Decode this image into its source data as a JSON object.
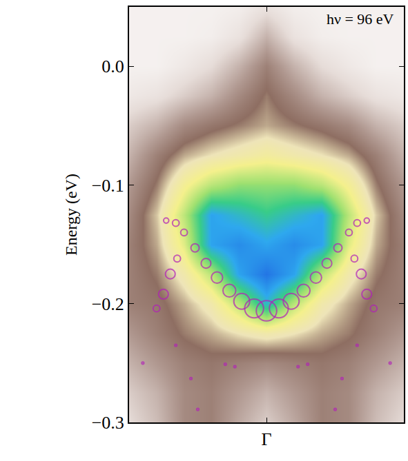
{
  "chart_data": {
    "type": "heatmap",
    "annotation": "hν = 96 eV",
    "y_label": "Energy (eV)",
    "xlim": [
      -1,
      1
    ],
    "xticks": [
      {
        "value": 0,
        "label": "Γ"
      }
    ],
    "ylim": [
      -0.3,
      0.05
    ],
    "yticks": [
      {
        "value": -0.3,
        "label": "−0.3"
      },
      {
        "value": -0.2,
        "label": "−0.2"
      },
      {
        "value": -0.1,
        "label": "−0.1"
      },
      {
        "value": 0,
        "label": "0.0"
      }
    ],
    "grid": false,
    "heatmap": {
      "x": [
        -1,
        -0.8,
        -0.6,
        -0.4,
        -0.2,
        0,
        0.2,
        0.4,
        0.6,
        0.8,
        1
      ],
      "y": [
        0.05,
        0.025,
        0,
        -0.025,
        -0.05,
        -0.075,
        -0.1,
        -0.125,
        -0.15,
        -0.175,
        -0.2,
        -0.225,
        -0.25,
        -0.275,
        -0.3
      ],
      "z": [
        [
          0.05,
          0.05,
          0.05,
          0.05,
          0.06,
          0.1,
          0.06,
          0.05,
          0.05,
          0.05,
          0.05
        ],
        [
          0.05,
          0.05,
          0.05,
          0.06,
          0.1,
          0.2,
          0.1,
          0.06,
          0.05,
          0.05,
          0.05
        ],
        [
          0.05,
          0.05,
          0.08,
          0.12,
          0.2,
          0.3,
          0.2,
          0.12,
          0.08,
          0.05,
          0.05
        ],
        [
          0.08,
          0.1,
          0.15,
          0.2,
          0.28,
          0.35,
          0.28,
          0.2,
          0.15,
          0.1,
          0.08
        ],
        [
          0.15,
          0.2,
          0.28,
          0.32,
          0.35,
          0.38,
          0.35,
          0.32,
          0.28,
          0.2,
          0.15
        ],
        [
          0.2,
          0.3,
          0.38,
          0.42,
          0.45,
          0.48,
          0.45,
          0.42,
          0.38,
          0.3,
          0.2
        ],
        [
          0.25,
          0.35,
          0.5,
          0.6,
          0.65,
          0.65,
          0.65,
          0.6,
          0.5,
          0.35,
          0.25
        ],
        [
          0.28,
          0.4,
          0.6,
          0.85,
          0.8,
          0.75,
          0.8,
          0.85,
          0.6,
          0.4,
          0.28
        ],
        [
          0.3,
          0.38,
          0.55,
          0.85,
          0.9,
          0.85,
          0.9,
          0.85,
          0.55,
          0.38,
          0.3
        ],
        [
          0.3,
          0.35,
          0.45,
          0.6,
          0.85,
          0.95,
          0.85,
          0.6,
          0.45,
          0.35,
          0.3
        ],
        [
          0.3,
          0.32,
          0.38,
          0.45,
          0.6,
          0.8,
          0.6,
          0.45,
          0.38,
          0.32,
          0.3
        ],
        [
          0.25,
          0.3,
          0.35,
          0.38,
          0.42,
          0.45,
          0.42,
          0.38,
          0.35,
          0.3,
          0.25
        ],
        [
          0.2,
          0.25,
          0.3,
          0.32,
          0.3,
          0.28,
          0.3,
          0.32,
          0.3,
          0.25,
          0.2
        ],
        [
          0.15,
          0.2,
          0.28,
          0.3,
          0.25,
          0.2,
          0.25,
          0.3,
          0.28,
          0.2,
          0.15
        ],
        [
          0.12,
          0.18,
          0.28,
          0.3,
          0.22,
          0.15,
          0.22,
          0.3,
          0.28,
          0.18,
          0.12
        ]
      ],
      "zlim": [
        0,
        1
      ]
    },
    "markers": {
      "type": "scatter",
      "marker": "open circle",
      "color": "#b020b8",
      "x": [
        -0.73,
        -0.66,
        -0.6,
        -0.52,
        -0.44,
        -0.36,
        -0.27,
        -0.18,
        -0.09,
        0,
        0.09,
        0.18,
        0.27,
        0.36,
        0.44,
        0.52,
        0.6,
        0.66,
        0.73,
        -0.65,
        -0.7,
        -0.75,
        -0.8,
        0.64,
        0.69,
        0.73,
        0.78,
        -0.9,
        -0.66,
        -0.55,
        -0.5,
        -0.3,
        -0.23,
        0.9,
        0.66,
        0.55,
        0.5,
        0.3,
        0.23
      ],
      "y": [
        -0.13,
        -0.132,
        -0.14,
        -0.153,
        -0.166,
        -0.178,
        -0.189,
        -0.198,
        -0.204,
        -0.206,
        -0.204,
        -0.198,
        -0.189,
        -0.178,
        -0.166,
        -0.153,
        -0.14,
        -0.132,
        -0.13,
        -0.162,
        -0.175,
        -0.192,
        -0.204,
        -0.162,
        -0.175,
        -0.192,
        -0.204,
        -0.25,
        -0.235,
        -0.263,
        -0.289,
        -0.251,
        -0.253,
        -0.25,
        -0.235,
        -0.263,
        -0.289,
        -0.251,
        -0.253
      ],
      "sizes": [
        3,
        4,
        4,
        5,
        6,
        7,
        8,
        10,
        12,
        13,
        12,
        10,
        8,
        7,
        6,
        5,
        4,
        4,
        3,
        4,
        6,
        6,
        4,
        4,
        6,
        6,
        4,
        1,
        1,
        1,
        1,
        1,
        1,
        1,
        1,
        1,
        1,
        1,
        1
      ]
    }
  }
}
